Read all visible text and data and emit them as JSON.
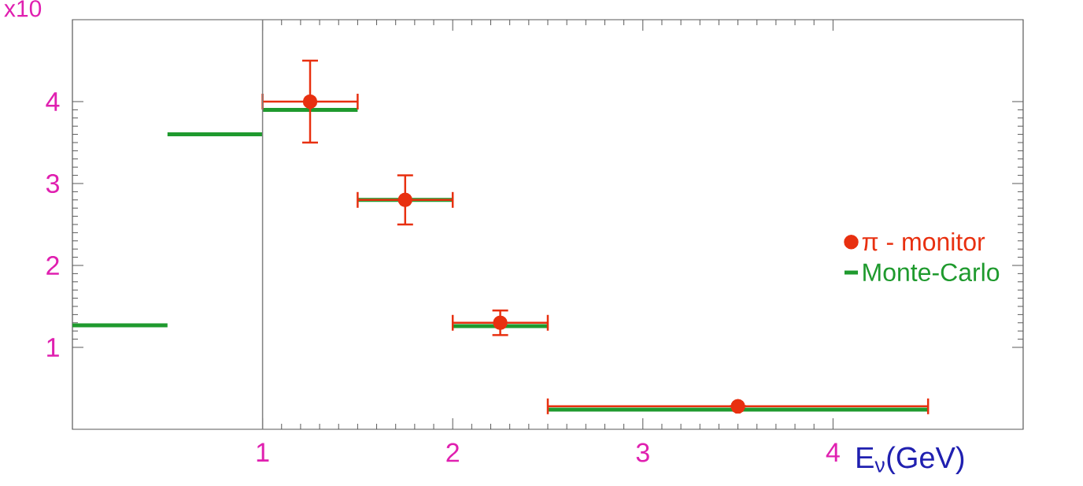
{
  "chart_data": {
    "type": "scatter",
    "xlabel": "E$_{ν}$(GeV)",
    "annotations": [
      "x10"
    ],
    "xlim": [
      0,
      5
    ],
    "ylim": [
      0,
      5
    ],
    "xticks": [
      1,
      2,
      3,
      4
    ],
    "yticks": [
      1,
      2,
      3,
      4
    ],
    "grid": false,
    "legend": "right",
    "ref_lines": [
      {
        "axis": "x",
        "value": 1,
        "color": "#808080"
      }
    ],
    "series": [
      {
        "name": "Monte-Carlo",
        "type": "step",
        "color": "#1f9a2e",
        "marker": "none",
        "x": [
          0,
          0.5,
          1,
          1.5,
          2,
          2.5,
          4.5
        ],
        "values": [
          1.27,
          3.6,
          3.9,
          2.8,
          1.26,
          0.24,
          0.24
        ]
      },
      {
        "name": "π - monitor",
        "color": "#e83010",
        "marker": "circle",
        "x": [
          1.25,
          1.75,
          2.25,
          3.5
        ],
        "values": [
          4.0,
          2.8,
          1.3,
          0.28
        ],
        "errors": [
          0.5,
          0.3,
          0.15,
          null
        ],
        "xerrors": [
          0.25,
          0.25,
          0.25,
          1.0
        ]
      }
    ]
  }
}
